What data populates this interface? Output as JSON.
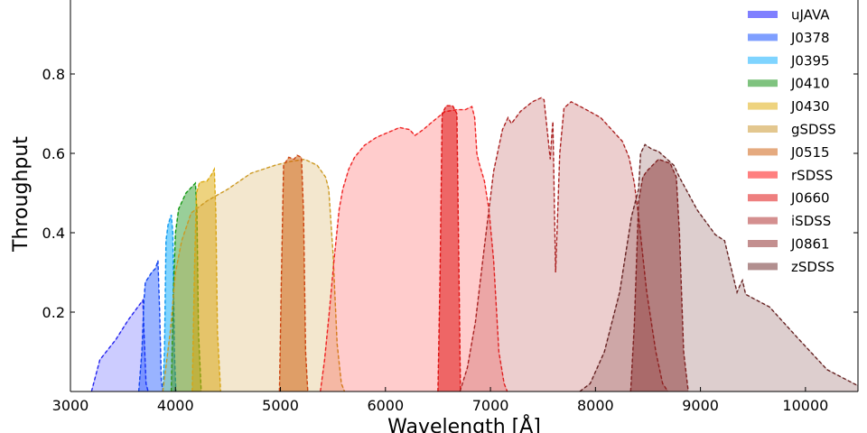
{
  "chart_data": {
    "type": "area",
    "title": "",
    "xlabel": "Wavelength [Å]",
    "ylabel": "Throughput",
    "xlim": [
      3000,
      10500
    ],
    "ylim": [
      0,
      1.0
    ],
    "x_ticks": [
      "3000",
      "4000",
      "5000",
      "6000",
      "7000",
      "8000",
      "9000",
      "10000"
    ],
    "x_tick_values": [
      3000,
      4000,
      5000,
      6000,
      7000,
      8000,
      9000,
      10000
    ],
    "y_ticks": [
      "0.2",
      "0.4",
      "0.6",
      "0.8"
    ],
    "y_tick_values": [
      0.2,
      0.4,
      0.6,
      0.8
    ],
    "grid": false,
    "legend_position": "top-right",
    "series": [
      {
        "name": "uJAVA",
        "color": "#0000ff",
        "edge": "#2222ee",
        "fill_alpha": 0.2,
        "points": [
          [
            3200,
            0
          ],
          [
            3280,
            0.08
          ],
          [
            3430,
            0.13
          ],
          [
            3550,
            0.18
          ],
          [
            3690,
            0.23
          ],
          [
            3700,
            0.15
          ],
          [
            3720,
            0.02
          ],
          [
            3740,
            0
          ]
        ]
      },
      {
        "name": "J0378",
        "color": "#0040ff",
        "edge": "#1144ee",
        "fill_alpha": 0.4,
        "points": [
          [
            3650,
            0
          ],
          [
            3680,
            0.1
          ],
          [
            3700,
            0.23
          ],
          [
            3713,
            0.275
          ],
          [
            3773,
            0.3
          ],
          [
            3810,
            0.31
          ],
          [
            3833,
            0.33
          ],
          [
            3850,
            0.2
          ],
          [
            3865,
            0.03
          ],
          [
            3880,
            0
          ]
        ]
      },
      {
        "name": "J0395",
        "color": "#00aaff",
        "edge": "#1199ee",
        "fill_alpha": 0.5,
        "points": [
          [
            3880,
            0
          ],
          [
            3895,
            0.1
          ],
          [
            3910,
            0.38
          ],
          [
            3930,
            0.42
          ],
          [
            3960,
            0.445
          ],
          [
            3975,
            0.4
          ],
          [
            3990,
            0.1
          ],
          [
            4005,
            0
          ]
        ]
      },
      {
        "name": "J0410",
        "color": "#008800",
        "edge": "#119911",
        "fill_alpha": 0.4,
        "points": [
          [
            3960,
            0
          ],
          [
            3980,
            0.25
          ],
          [
            4000,
            0.4
          ],
          [
            4030,
            0.46
          ],
          [
            4100,
            0.5
          ],
          [
            4190,
            0.525
          ],
          [
            4205,
            0.45
          ],
          [
            4220,
            0.15
          ],
          [
            4245,
            0
          ]
        ]
      },
      {
        "name": "J0430",
        "color": "#dda800",
        "edge": "#ddaa11",
        "fill_alpha": 0.5,
        "points": [
          [
            4160,
            0
          ],
          [
            4180,
            0.3
          ],
          [
            4200,
            0.5
          ],
          [
            4230,
            0.527
          ],
          [
            4300,
            0.53
          ],
          [
            4340,
            0.545
          ],
          [
            4370,
            0.56
          ],
          [
            4385,
            0.45
          ],
          [
            4400,
            0.15
          ],
          [
            4430,
            0
          ]
        ]
      },
      {
        "name": "gSDSS",
        "color": "#c89020",
        "edge": "#cc9922",
        "fill_alpha": 0.22,
        "points": [
          [
            3880,
            0
          ],
          [
            3950,
            0.15
          ],
          [
            4000,
            0.3
          ],
          [
            4060,
            0.38
          ],
          [
            4150,
            0.45
          ],
          [
            4300,
            0.48
          ],
          [
            4500,
            0.51
          ],
          [
            4720,
            0.55
          ],
          [
            4950,
            0.57
          ],
          [
            5100,
            0.58
          ],
          [
            5230,
            0.585
          ],
          [
            5350,
            0.57
          ],
          [
            5430,
            0.54
          ],
          [
            5460,
            0.51
          ],
          [
            5500,
            0.35
          ],
          [
            5540,
            0.12
          ],
          [
            5580,
            0.02
          ],
          [
            5610,
            0
          ]
        ]
      },
      {
        "name": "J0515",
        "color": "#cc5500",
        "edge": "#cc4411",
        "fill_alpha": 0.5,
        "points": [
          [
            4990,
            0
          ],
          [
            5010,
            0.3
          ],
          [
            5030,
            0.57
          ],
          [
            5080,
            0.59
          ],
          [
            5130,
            0.585
          ],
          [
            5160,
            0.595
          ],
          [
            5200,
            0.59
          ],
          [
            5220,
            0.45
          ],
          [
            5240,
            0.1
          ],
          [
            5260,
            0
          ]
        ]
      },
      {
        "name": "rSDSS",
        "color": "#ff0000",
        "edge": "#ee2222",
        "fill_alpha": 0.2,
        "points": [
          [
            5380,
            0
          ],
          [
            5420,
            0.08
          ],
          [
            5465,
            0.2
          ],
          [
            5510,
            0.33
          ],
          [
            5560,
            0.46
          ],
          [
            5594,
            0.51
          ],
          [
            5650,
            0.56
          ],
          [
            5706,
            0.59
          ],
          [
            5800,
            0.62
          ],
          [
            5912,
            0.64
          ],
          [
            6000,
            0.65
          ],
          [
            6135,
            0.665
          ],
          [
            6230,
            0.66
          ],
          [
            6280,
            0.645
          ],
          [
            6360,
            0.66
          ],
          [
            6427,
            0.675
          ],
          [
            6565,
            0.705
          ],
          [
            6680,
            0.71
          ],
          [
            6760,
            0.71
          ],
          [
            6823,
            0.718
          ],
          [
            6850,
            0.69
          ],
          [
            6870,
            0.6
          ],
          [
            6890,
            0.577
          ],
          [
            6943,
            0.53
          ],
          [
            6985,
            0.46
          ],
          [
            7030,
            0.33
          ],
          [
            7080,
            0.1
          ],
          [
            7130,
            0.02
          ],
          [
            7160,
            0
          ]
        ]
      },
      {
        "name": "J0660",
        "color": "#dd0000",
        "edge": "#dd1111",
        "fill_alpha": 0.5,
        "points": [
          [
            6500,
            0
          ],
          [
            6520,
            0.3
          ],
          [
            6540,
            0.7
          ],
          [
            6580,
            0.72
          ],
          [
            6640,
            0.72
          ],
          [
            6680,
            0.7
          ],
          [
            6700,
            0.3
          ],
          [
            6715,
            0
          ]
        ]
      },
      {
        "name": "iSDSS",
        "color": "#aa2020",
        "edge": "#aa2222",
        "fill_alpha": 0.22,
        "points": [
          [
            6710,
            0
          ],
          [
            6780,
            0.06
          ],
          [
            6857,
            0.175
          ],
          [
            6943,
            0.366
          ],
          [
            7030,
            0.555
          ],
          [
            7115,
            0.66
          ],
          [
            7167,
            0.69
          ],
          [
            7200,
            0.675
          ],
          [
            7287,
            0.706
          ],
          [
            7400,
            0.73
          ],
          [
            7484,
            0.74
          ],
          [
            7510,
            0.735
          ],
          [
            7570,
            0.585
          ],
          [
            7585,
            0.65
          ],
          [
            7595,
            0.68
          ],
          [
            7620,
            0.3
          ],
          [
            7660,
            0.6
          ],
          [
            7700,
            0.714
          ],
          [
            7768,
            0.73
          ],
          [
            7913,
            0.71
          ],
          [
            8050,
            0.69
          ],
          [
            8257,
            0.63
          ],
          [
            8320,
            0.59
          ],
          [
            8370,
            0.525
          ],
          [
            8411,
            0.44
          ],
          [
            8488,
            0.25
          ],
          [
            8575,
            0.1
          ],
          [
            8640,
            0.02
          ],
          [
            8690,
            0
          ]
        ]
      },
      {
        "name": "J0861",
        "color": "#882020",
        "edge": "#882222",
        "fill_alpha": 0.45,
        "points": [
          [
            8335,
            0
          ],
          [
            8370,
            0.17
          ],
          [
            8411,
            0.48
          ],
          [
            8450,
            0.54
          ],
          [
            8488,
            0.555
          ],
          [
            8600,
            0.585
          ],
          [
            8712,
            0.575
          ],
          [
            8770,
            0.54
          ],
          [
            8800,
            0.4
          ],
          [
            8840,
            0.1
          ],
          [
            8884,
            0
          ]
        ]
      },
      {
        "name": "zSDSS",
        "color": "#662020",
        "edge": "#662222",
        "fill_alpha": 0.22,
        "points": [
          [
            7850,
            0
          ],
          [
            7950,
            0.02
          ],
          [
            8085,
            0.1
          ],
          [
            8230,
            0.25
          ],
          [
            8343,
            0.44
          ],
          [
            8411,
            0.51
          ],
          [
            8430,
            0.6
          ],
          [
            8472,
            0.622
          ],
          [
            8540,
            0.61
          ],
          [
            8600,
            0.605
          ],
          [
            8746,
            0.57
          ],
          [
            8800,
            0.54
          ],
          [
            8970,
            0.457
          ],
          [
            9142,
            0.395
          ],
          [
            9230,
            0.38
          ],
          [
            9348,
            0.25
          ],
          [
            9380,
            0.27
          ],
          [
            9400,
            0.28
          ],
          [
            9430,
            0.245
          ],
          [
            9500,
            0.235
          ],
          [
            9658,
            0.213
          ],
          [
            9915,
            0.138
          ],
          [
            10206,
            0.055
          ],
          [
            10490,
            0.016
          ],
          [
            10500,
            0.015
          ]
        ]
      }
    ]
  }
}
